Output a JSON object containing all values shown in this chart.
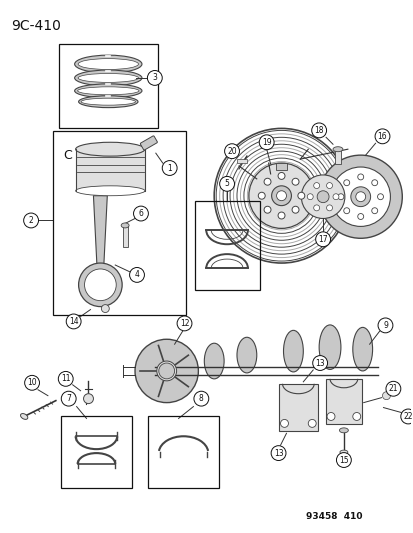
{
  "title": "9C-410",
  "watermark": "93458  410",
  "bg_color": "#ffffff",
  "fig_width": 4.14,
  "fig_height": 5.33,
  "dpi": 100,
  "gray1": "#444444",
  "gray2": "#777777",
  "gray3": "#aaaaaa",
  "gray_fill": "#c8c8c8",
  "gray_fill2": "#e0e0e0",
  "dark": "#111111"
}
